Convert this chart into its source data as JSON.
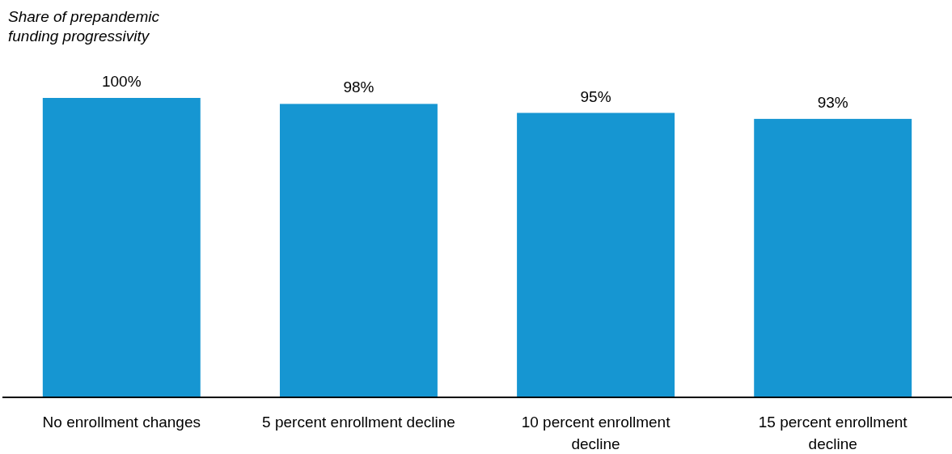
{
  "chart_data": {
    "type": "bar",
    "ylabel": "Share of prepandemic funding progressivity",
    "categories": [
      "No enrollment changes",
      "5 percent enrollment decline",
      "10 percent enrollment decline",
      "15 percent enrollment decline"
    ],
    "values": [
      100,
      98,
      95,
      93
    ],
    "value_labels": [
      "100%",
      "98%",
      "95%",
      "93%"
    ],
    "color": "#1696d2"
  }
}
